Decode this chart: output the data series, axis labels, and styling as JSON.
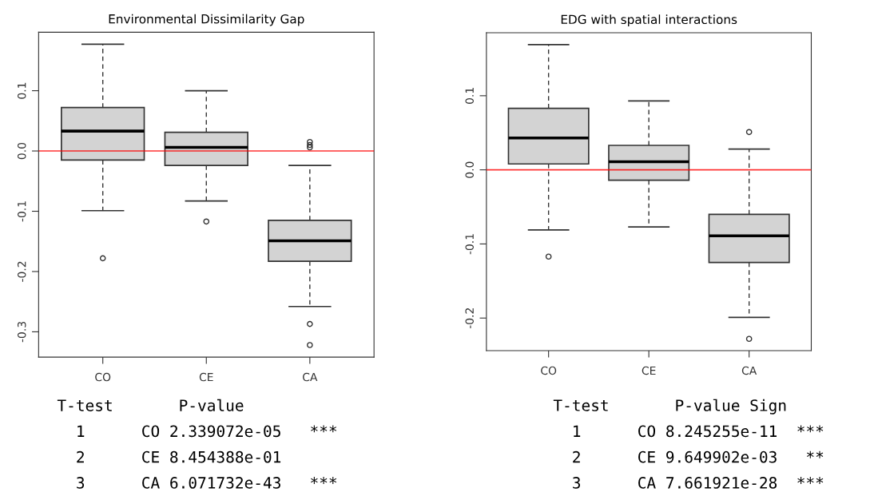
{
  "chart_data": [
    {
      "type": "box",
      "title": "Environmental Dissimilarity Gap",
      "categories": [
        "CO",
        "CE",
        "CA"
      ],
      "boxes": [
        {
          "low": -0.099,
          "q1": -0.015,
          "median": 0.033,
          "q3": 0.072,
          "high": 0.177,
          "outliers": [
            -0.178
          ]
        },
        {
          "low": -0.083,
          "q1": -0.024,
          "median": 0.006,
          "q3": 0.031,
          "high": 0.1,
          "outliers": [
            -0.117
          ]
        },
        {
          "low": -0.258,
          "q1": -0.183,
          "median": -0.149,
          "q3": -0.115,
          "high": -0.024,
          "outliers": [
            0.015,
            0.01,
            0.006,
            -0.287,
            -0.322
          ]
        }
      ],
      "color": "#d3d3d3",
      "ylim": [
        -0.342,
        0.197
      ],
      "yticks": [
        -0.3,
        -0.2,
        -0.1,
        {
          "value": 0,
          "label": "0.0"
        },
        0.1
      ],
      "grid": false,
      "ref_lines": [
        {
          "axis": "y",
          "value": 0,
          "color": "#ff0000"
        }
      ],
      "annotations": [
        "T-test       P-value",
        "  1      CO 2.339072e-05   ***",
        "  2      CE 8.454388e-01",
        "  3      CA 6.071732e-43   ***"
      ]
    },
    {
      "type": "box",
      "title": "EDG with spatial interactions",
      "categories": [
        "CO",
        "CE",
        "CA"
      ],
      "boxes": [
        {
          "low": -0.081,
          "q1": 0.008,
          "median": 0.043,
          "q3": 0.083,
          "high": 0.169,
          "outliers": [
            -0.117
          ]
        },
        {
          "low": -0.077,
          "q1": -0.014,
          "median": 0.011,
          "q3": 0.033,
          "high": 0.093
        },
        {
          "low": -0.199,
          "q1": -0.125,
          "median": -0.089,
          "q3": -0.06,
          "high": 0.028,
          "outliers": [
            0.051,
            -0.228
          ]
        }
      ],
      "color": "#d3d3d3",
      "ylim": [
        -0.244,
        0.185
      ],
      "yticks": [
        -0.2,
        -0.1,
        {
          "value": 0,
          "label": "0.0"
        },
        0.1
      ],
      "grid": false,
      "ref_lines": [
        {
          "axis": "y",
          "value": 0,
          "color": "#ff0000"
        }
      ],
      "annotations": [
        "T-test       P-value Sign",
        "  1      CO 8.245255e-11  ***",
        "  2      CE 9.649902e-03   **",
        "  3      CA 7.661921e-28  ***"
      ]
    }
  ]
}
